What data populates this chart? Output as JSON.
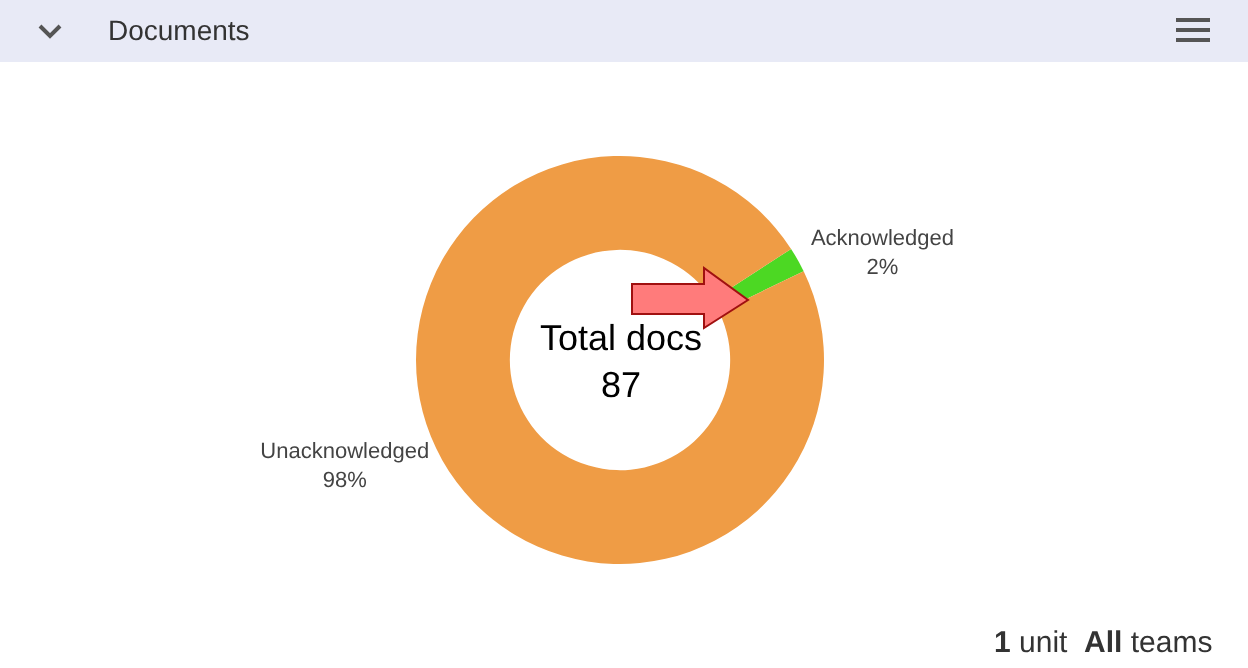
{
  "chart_data": {
    "type": "donut",
    "title": "Documents",
    "categories": [
      "Acknowledged",
      "Unacknowledged"
    ],
    "values": [
      2,
      98
    ],
    "value_labels": [
      "2%",
      "98%"
    ],
    "colors": [
      "#4cd823",
      "#ef9c45"
    ],
    "annotations": [
      "Total docs\n87",
      "1 unit  All teams"
    ],
    "legend": false
  }
}
